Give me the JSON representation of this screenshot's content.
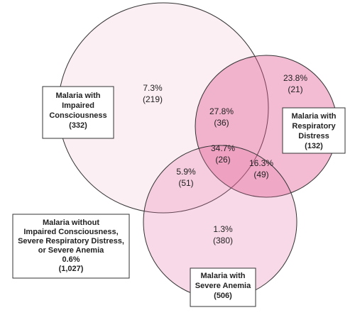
{
  "sets": [
    {
      "label_lines": [
        "Malaria with",
        "Impaired",
        "Consciousness"
      ],
      "count": "(332)"
    },
    {
      "label_lines": [
        "Malaria with",
        "Respiratory",
        "Distress"
      ],
      "count": "(132)"
    },
    {
      "label_lines": [
        "Malaria with",
        "Severe Anemia"
      ],
      "count": "(506)"
    }
  ],
  "regions": [
    {
      "percent": "7.3%",
      "count": "(219)"
    },
    {
      "percent": "23.8%",
      "count": "(21)"
    },
    {
      "percent": "27.8%",
      "count": "(36)"
    },
    {
      "percent": "34.7%",
      "count": "(26)"
    },
    {
      "percent": "16.3%",
      "count": "(49)"
    },
    {
      "percent": "5.9%",
      "count": "(51)"
    },
    {
      "percent": "1.3%",
      "count": "(380)"
    }
  ],
  "outside": {
    "label_lines": [
      "Malaria without",
      "Impaired Consciousness,",
      "Severe Respiratory Distress,",
      "or Severe Anemia"
    ],
    "percent": "0.6%",
    "count": "(1,027)"
  }
}
